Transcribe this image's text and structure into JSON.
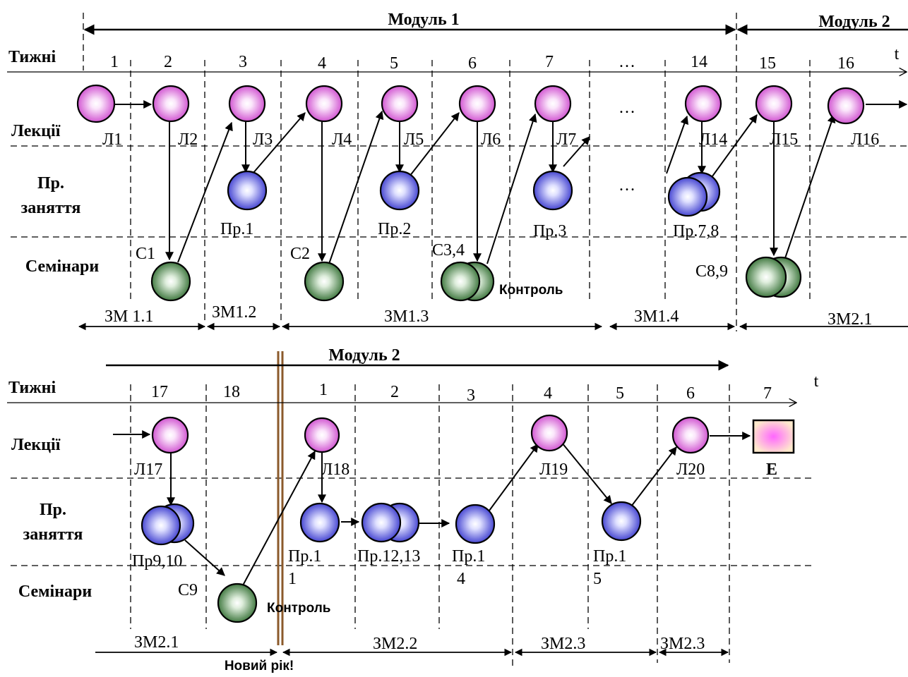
{
  "colors": {
    "lecture": "#cc44cc",
    "practice": "#3333cc",
    "seminar": "#2e6b2e",
    "exam": "#ff66ff",
    "line": "#000000",
    "new_year_line": "#8b5a2b"
  },
  "top": {
    "module1_label": "Модуль 1",
    "module2_label": "Модуль 2",
    "weeks_label": "Тижні",
    "lectures_label": "Лекції",
    "practice_label_1": "Пр.",
    "practice_label_2": "заняття",
    "seminars_label": "Семінари",
    "t_label": "t",
    "ellipsis": "…",
    "weeks": [
      "1",
      "2",
      "3",
      "4",
      "5",
      "6",
      "7",
      "…",
      "14",
      "15",
      "16"
    ],
    "lectures": [
      "Л1",
      "Л2",
      "Л3",
      "Л4",
      "Л5",
      "Л6",
      "Л7",
      "Л14",
      "Л15",
      "Л16"
    ],
    "practices": [
      "Пр.1",
      "Пр.2",
      "Пр.3",
      "Пр.7,8"
    ],
    "seminars": [
      "С1",
      "С2",
      "С3,4",
      "С8,9"
    ],
    "control_label": "Контроль",
    "submodules": [
      "ЗМ 1.1",
      "ЗМ1.2",
      "ЗМ1.3",
      "ЗМ1.4",
      "ЗМ2.1"
    ]
  },
  "bottom": {
    "module2_label": "Модуль 2",
    "weeks_label": "Тижні",
    "lectures_label": "Лекції",
    "practice_label_1": "Пр.",
    "practice_label_2": "заняття",
    "seminars_label": "Семінари",
    "t_label": "t",
    "weeks": [
      "17",
      "18",
      "1",
      "2",
      "3",
      "4",
      "5",
      "6",
      "7"
    ],
    "lectures": [
      "Л17",
      "Л18",
      "Л19",
      "Л20"
    ],
    "practices": [
      "Пр9,10",
      "Пр.1",
      "Пр.12,13",
      "Пр.1",
      "Пр.1"
    ],
    "practice_subs": [
      "1",
      "4",
      "5"
    ],
    "seminars": [
      "С9"
    ],
    "control_label": "Контроль",
    "exam_label": "Е",
    "submodules": [
      "ЗМ2.1",
      "ЗМ2.2",
      "ЗМ2.3",
      "ЗМ2.3"
    ],
    "new_year_label": "Новий рік!"
  }
}
